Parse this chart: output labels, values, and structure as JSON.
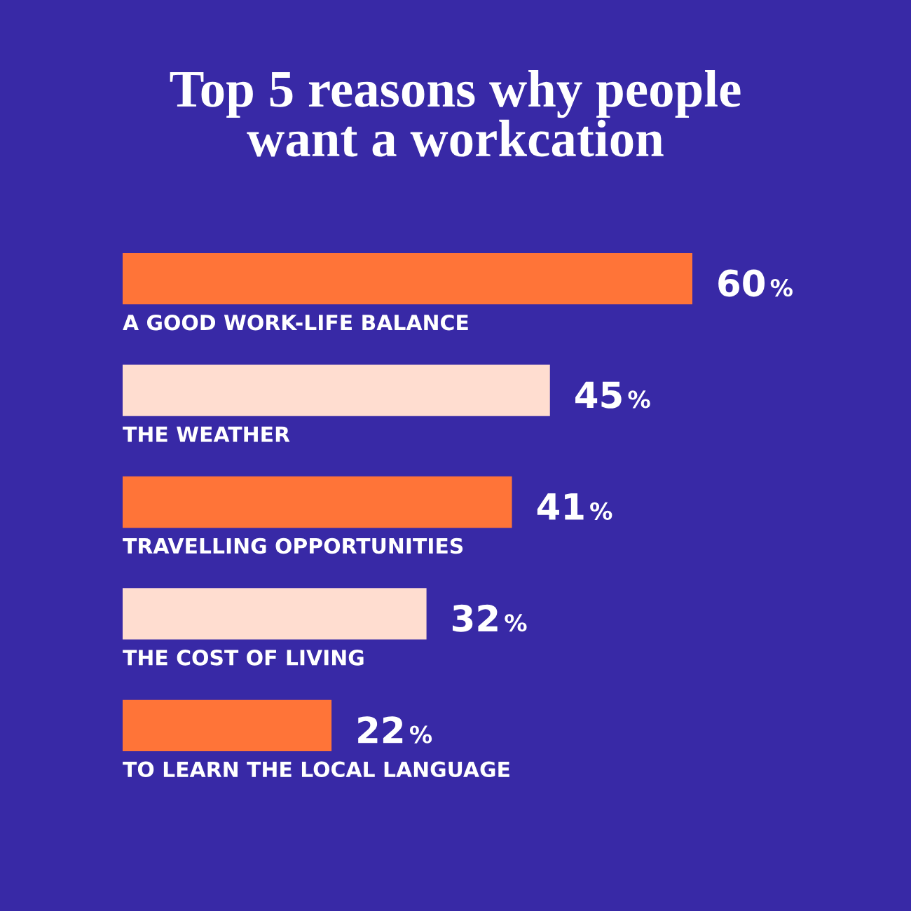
{
  "chart_data": {
    "type": "bar",
    "orientation": "horizontal",
    "title": "Top 5 reasons why people\nwant a workcation",
    "categories": [
      "A GOOD WORK-LIFE BALANCE",
      "THE WEATHER",
      "TRAVELLING OPPORTUNITIES",
      "THE COST OF LIVING",
      "TO LEARN THE LOCAL LANGUAGE"
    ],
    "values": [
      60,
      45,
      41,
      32,
      22
    ],
    "colors": [
      "#ff7438",
      "#ffddd0",
      "#ff7438",
      "#ffddd0",
      "#ff7438"
    ],
    "value_labels": [
      "60%",
      "45%",
      "41%",
      "32%",
      "22%"
    ],
    "tick_labels": "y"
  }
}
